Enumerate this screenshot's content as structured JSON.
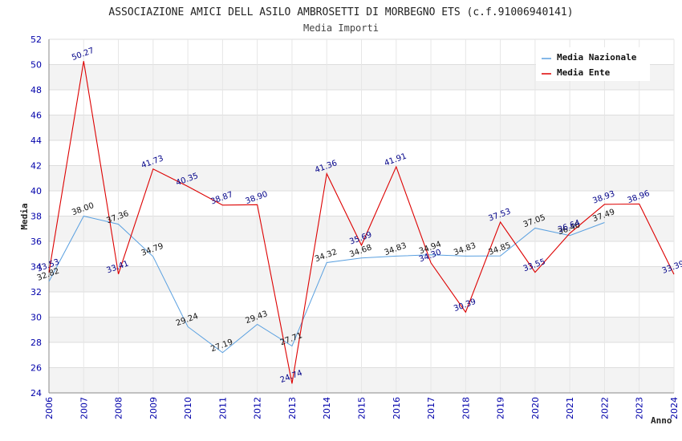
{
  "chart_data": {
    "type": "line",
    "title": "ASSOCIAZIONE AMICI DELL ASILO AMBROSETTI DI MORBEGNO ETS (c.f.91006940141)",
    "subtitle": "Media Importi",
    "xlabel": "Anno",
    "ylabel": "Media",
    "ylim": [
      24,
      52
    ],
    "yticks": [
      24,
      26,
      28,
      30,
      32,
      34,
      36,
      38,
      40,
      42,
      44,
      46,
      48,
      50,
      52
    ],
    "x": [
      "2006",
      "2007",
      "2008",
      "2009",
      "2010",
      "2011",
      "2012",
      "2013",
      "2014",
      "2015",
      "2016",
      "2017",
      "2018",
      "2019",
      "2020",
      "2021",
      "2022",
      "2023",
      "2024"
    ],
    "grid": true,
    "legend_position": "top-right",
    "series": [
      {
        "name": "Media Nazionale",
        "color": "#5aa0e0",
        "values": [
          32.82,
          38.0,
          37.36,
          34.79,
          29.24,
          27.19,
          29.43,
          27.71,
          34.32,
          34.68,
          34.83,
          34.94,
          34.83,
          34.85,
          37.05,
          36.46,
          37.49,
          null,
          null
        ],
        "labels": [
          "32.82",
          "38.00",
          "37.36",
          "34.79",
          "29.24",
          "27.19",
          "29.43",
          "27.71",
          "34.32",
          "34.68",
          "34.83",
          "34.94",
          "34.83",
          "34.85",
          "37.05",
          "36.46",
          "37.49",
          null,
          null
        ]
      },
      {
        "name": "Media Ente",
        "color": "#dd0000",
        "values": [
          33.53,
          50.27,
          33.41,
          41.73,
          40.35,
          38.87,
          38.9,
          24.74,
          41.36,
          35.69,
          41.91,
          34.3,
          30.39,
          37.53,
          33.55,
          36.64,
          38.93,
          38.96,
          33.39
        ],
        "labels": [
          "33.53",
          "50.27",
          "33.41",
          "41.73",
          "40.35",
          "38.87",
          "38.90",
          "24.74",
          "41.36",
          "35.69",
          "41.91",
          "34.30",
          "30.39",
          "37.53",
          "33.55",
          "36.64",
          "38.93",
          "38.96",
          "33.39"
        ]
      }
    ]
  }
}
